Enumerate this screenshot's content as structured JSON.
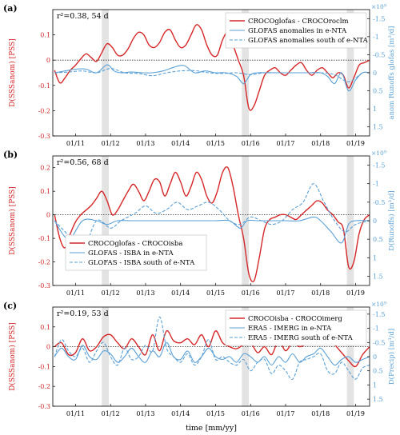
{
  "figure": {
    "xlabel": "time [mm/yy]",
    "shading": {
      "color": "#e3e3e3",
      "periods": [
        [
          11.75,
          11.95
        ],
        [
          15.75,
          15.95
        ],
        [
          18.75,
          18.95
        ]
      ]
    },
    "xlim": [
      10.35,
      19.4
    ],
    "x_ticks": [
      11,
      12,
      13,
      14,
      15,
      16,
      17,
      18,
      19
    ],
    "x_tick_labels": [
      "01/11",
      "01/12",
      "01/13",
      "01/14",
      "01/15",
      "01/16",
      "01/17",
      "01/18",
      "01/19"
    ],
    "colors": {
      "red": "#d62728",
      "blue": "#5aa0d6",
      "grid": "#9e9e9e"
    }
  },
  "chart_data": [
    {
      "type": "line",
      "panel_label": "(a)",
      "stat_label": "r²=0.38, 54 d",
      "ylabel_left": "D(SSSanom) [PSS]",
      "ylabel_right": "anom Runoffs glofas [m³/d]",
      "right_multiplier": "×10⁹",
      "ylim_left": [
        -0.3,
        0.2
      ],
      "left_ticks": [
        0.1,
        0,
        -0.1,
        -0.2,
        -0.3
      ],
      "left_tick_labels": [
        "0.1",
        "0",
        "-0.1",
        "-0.2",
        "-0.3"
      ],
      "ylim_right": [
        1.75,
        -1.75
      ],
      "right_ticks": [
        -1.5,
        -1,
        -0.5,
        0,
        0.5,
        1,
        1.5
      ],
      "right_tick_labels": [
        "-1.5",
        "-1",
        "-0.5",
        "0",
        "0.5",
        "1",
        "1.5"
      ],
      "legend_position": "top-right",
      "series": [
        {
          "name": "CROCOglofas - CROCOroclm",
          "axis": "left",
          "color": "#d62728",
          "dash": "solid",
          "x": [
            10.4,
            10.55,
            10.7,
            10.85,
            11.0,
            11.15,
            11.3,
            11.45,
            11.6,
            11.75,
            11.9,
            12.05,
            12.2,
            12.35,
            12.5,
            12.65,
            12.8,
            12.95,
            13.1,
            13.25,
            13.4,
            13.55,
            13.7,
            13.85,
            14.0,
            14.15,
            14.3,
            14.45,
            14.6,
            14.75,
            14.9,
            15.05,
            15.2,
            15.35,
            15.5,
            15.65,
            15.8,
            15.95,
            16.1,
            16.25,
            16.4,
            16.55,
            16.7,
            16.85,
            17.0,
            17.15,
            17.3,
            17.45,
            17.6,
            17.75,
            17.9,
            18.05,
            18.2,
            18.35,
            18.5,
            18.65,
            18.8,
            18.95,
            19.1,
            19.25,
            19.4
          ],
          "y": [
            -0.04,
            -0.09,
            -0.07,
            -0.04,
            -0.02,
            0.005,
            0.025,
            0.01,
            -0.005,
            0.03,
            0.065,
            0.05,
            0.02,
            0.02,
            0.045,
            0.085,
            0.11,
            0.1,
            0.06,
            0.05,
            0.07,
            0.11,
            0.12,
            0.08,
            0.05,
            0.06,
            0.1,
            0.14,
            0.12,
            0.06,
            0.02,
            0.02,
            0.08,
            0.11,
            0.06,
            0.0,
            -0.06,
            -0.19,
            -0.18,
            -0.12,
            -0.06,
            -0.04,
            -0.03,
            -0.05,
            -0.06,
            -0.04,
            -0.02,
            -0.01,
            -0.04,
            -0.06,
            -0.04,
            -0.03,
            -0.05,
            -0.07,
            -0.05,
            -0.06,
            -0.11,
            -0.07,
            -0.02,
            -0.01,
            0.0
          ]
        },
        {
          "name": "GLOFAS anomalies in e-NTA",
          "axis": "right",
          "color": "#5aa0d6",
          "dash": "solid",
          "x": [
            10.4,
            10.7,
            11.0,
            11.3,
            11.6,
            11.9,
            12.1,
            12.3,
            12.6,
            12.9,
            13.2,
            13.5,
            13.8,
            14.1,
            14.4,
            14.7,
            15.0,
            15.3,
            15.6,
            15.8,
            16.0,
            16.2,
            16.5,
            16.8,
            17.1,
            17.4,
            17.7,
            18.0,
            18.2,
            18.4,
            18.6,
            18.8,
            19.0,
            19.2,
            19.4
          ],
          "y": [
            0.0,
            -0.05,
            -0.1,
            -0.1,
            0.0,
            -0.22,
            -0.05,
            0.0,
            -0.02,
            0.0,
            0.0,
            -0.05,
            -0.15,
            -0.2,
            0.0,
            -0.05,
            0.0,
            0.0,
            0.1,
            0.3,
            0.05,
            0.0,
            0.0,
            0.0,
            0.0,
            0.0,
            0.0,
            0.0,
            0.1,
            0.3,
            0.0,
            0.5,
            0.2,
            0.0,
            0.0
          ]
        },
        {
          "name": "GLOFAS anomalies south of e-NTA",
          "axis": "right",
          "color": "#5aa0d6",
          "dash": "dashed",
          "x": [
            10.4,
            10.8,
            11.2,
            11.6,
            12.0,
            12.4,
            12.8,
            13.2,
            13.6,
            14.0,
            14.4,
            14.8,
            15.2,
            15.6,
            16.0,
            16.4,
            16.8,
            17.2,
            17.6,
            18.0,
            18.4,
            18.8,
            19.2,
            19.4
          ],
          "y": [
            0.0,
            -0.02,
            -0.05,
            0.0,
            -0.12,
            0.0,
            0.02,
            0.08,
            0.0,
            -0.05,
            -0.06,
            0.0,
            0.02,
            0.0,
            0.05,
            0.0,
            0.0,
            0.0,
            0.0,
            0.0,
            0.05,
            0.25,
            0.0,
            0.0
          ]
        }
      ]
    },
    {
      "type": "line",
      "panel_label": "(b)",
      "stat_label": "r²=0.56, 68 d",
      "ylabel_left": "D(SSSanom) [PSS]",
      "ylabel_right": "D(Runoffs) [m³/d]",
      "right_multiplier": "×10⁹",
      "ylim_left": [
        -0.3,
        0.25
      ],
      "left_ticks": [
        0.2,
        0.1,
        0,
        -0.1,
        -0.2,
        -0.3
      ],
      "left_tick_labels": [
        "0.2",
        "0.1",
        "0",
        "-0.1",
        "-0.2",
        "-0.3"
      ],
      "ylim_right": [
        1.75,
        -1.75
      ],
      "right_ticks": [
        -1.5,
        -1,
        -0.5,
        0,
        0.5,
        1,
        1.5
      ],
      "right_tick_labels": [
        "-1.5",
        "-1",
        "-0.5",
        "0",
        "0.5",
        "1",
        "1.5"
      ],
      "legend_position": "bottom-left",
      "series": [
        {
          "name": "CROCOglofas - CROCOisba",
          "axis": "left",
          "color": "#d62728",
          "dash": "solid",
          "x": [
            10.4,
            10.55,
            10.7,
            10.85,
            11.0,
            11.15,
            11.3,
            11.45,
            11.6,
            11.75,
            11.9,
            12.05,
            12.2,
            12.35,
            12.5,
            12.65,
            12.8,
            12.95,
            13.1,
            13.25,
            13.4,
            13.55,
            13.7,
            13.85,
            14.0,
            14.15,
            14.3,
            14.45,
            14.6,
            14.75,
            14.9,
            15.05,
            15.2,
            15.35,
            15.5,
            15.65,
            15.8,
            15.95,
            16.1,
            16.25,
            16.4,
            16.55,
            16.7,
            16.85,
            17.0,
            17.15,
            17.3,
            17.45,
            17.6,
            17.75,
            17.9,
            18.05,
            18.2,
            18.35,
            18.5,
            18.65,
            18.8,
            18.95,
            19.1,
            19.25,
            19.4
          ],
          "y": [
            0.0,
            -0.1,
            -0.14,
            -0.08,
            -0.03,
            0.0,
            0.02,
            0.04,
            0.07,
            0.1,
            0.06,
            0.0,
            0.02,
            0.06,
            0.1,
            0.13,
            0.1,
            0.06,
            0.1,
            0.15,
            0.14,
            0.08,
            0.13,
            0.18,
            0.14,
            0.08,
            0.12,
            0.18,
            0.15,
            0.08,
            0.05,
            0.1,
            0.18,
            0.2,
            0.12,
            0.0,
            -0.1,
            -0.25,
            -0.28,
            -0.18,
            -0.06,
            -0.02,
            -0.01,
            0.0,
            0.0,
            -0.01,
            -0.02,
            0.0,
            0.02,
            0.04,
            0.06,
            0.05,
            0.02,
            0.0,
            -0.03,
            -0.06,
            -0.22,
            -0.2,
            -0.08,
            -0.02,
            0.0
          ]
        },
        {
          "name": "GLOFAS - ISBA in e-NTA",
          "axis": "right",
          "color": "#5aa0d6",
          "dash": "solid",
          "x": [
            10.4,
            10.8,
            11.2,
            11.6,
            11.9,
            12.2,
            12.6,
            13.0,
            13.4,
            13.8,
            14.2,
            14.6,
            15.0,
            15.4,
            15.7,
            15.9,
            16.2,
            16.6,
            17.0,
            17.4,
            17.8,
            18.0,
            18.3,
            18.6,
            18.8,
            19.0,
            19.4
          ],
          "y": [
            0.0,
            0.5,
            0.0,
            0.0,
            0.1,
            0.0,
            0.0,
            0.0,
            0.0,
            0.0,
            0.0,
            0.0,
            0.0,
            0.0,
            0.2,
            0.0,
            0.0,
            0.0,
            0.0,
            0.0,
            -0.1,
            0.0,
            0.3,
            0.6,
            0.1,
            0.0,
            0.0
          ]
        },
        {
          "name": "GLOFAS - ISBA south of e-NTA",
          "axis": "right",
          "color": "#5aa0d6",
          "dash": "dashed",
          "x": [
            10.4,
            10.8,
            11.2,
            11.6,
            12.0,
            12.3,
            12.7,
            13.0,
            13.3,
            13.6,
            13.9,
            14.2,
            14.5,
            14.8,
            15.1,
            15.4,
            15.7,
            16.0,
            16.3,
            16.6,
            16.9,
            17.2,
            17.5,
            17.8,
            18.1,
            18.4,
            18.7,
            19.0,
            19.4
          ],
          "y": [
            0.0,
            0.4,
            0.8,
            0.0,
            0.2,
            0.0,
            -0.2,
            -0.4,
            -0.2,
            -0.3,
            -0.5,
            -0.3,
            -0.4,
            -0.5,
            -0.3,
            0.0,
            0.1,
            -0.1,
            0.0,
            0.1,
            0.0,
            -0.3,
            -0.5,
            -1.0,
            -0.5,
            0.0,
            0.3,
            0.1,
            0.0
          ]
        }
      ]
    },
    {
      "type": "line",
      "panel_label": "(c)",
      "stat_label": "r²=0.19, 53 d",
      "ylabel_left": "D(SSSanom) [PSS]",
      "ylabel_right": "D(Precip) [m³/d]",
      "right_multiplier": "×10⁹",
      "ylim_left": [
        -0.3,
        0.2
      ],
      "left_ticks": [
        0.1,
        0,
        -0.1,
        -0.2,
        -0.3
      ],
      "left_tick_labels": [
        "0.1",
        "0",
        "-0.1",
        "-0.2",
        "-0.3"
      ],
      "ylim_right": [
        1.75,
        -1.75
      ],
      "right_ticks": [
        -1.5,
        -1,
        -0.5,
        0,
        0.5,
        1,
        1.5
      ],
      "right_tick_labels": [
        "-1.5",
        "-1",
        "-0.5",
        "0",
        "0.5",
        "1",
        "1.5"
      ],
      "legend_position": "top-right",
      "series": [
        {
          "name": "CROCOisba - CROCOimerg",
          "axis": "left",
          "color": "#d62728",
          "dash": "solid",
          "x": [
            10.4,
            10.6,
            10.8,
            11.0,
            11.2,
            11.4,
            11.6,
            11.8,
            12.0,
            12.2,
            12.4,
            12.6,
            12.8,
            13.0,
            13.2,
            13.4,
            13.6,
            13.8,
            14.0,
            14.2,
            14.4,
            14.6,
            14.8,
            15.0,
            15.2,
            15.4,
            15.6,
            15.8,
            16.0,
            16.2,
            16.4,
            16.6,
            16.8,
            17.0,
            17.2,
            17.4,
            17.6,
            17.8,
            18.0,
            18.2,
            18.4,
            18.6,
            18.8,
            19.0,
            19.2,
            19.4
          ],
          "y": [
            0.0,
            0.02,
            -0.04,
            -0.03,
            0.04,
            -0.02,
            0.0,
            0.05,
            0.06,
            0.02,
            -0.01,
            0.04,
            0.0,
            -0.04,
            0.06,
            -0.02,
            0.08,
            0.03,
            0.02,
            0.04,
            0.01,
            0.06,
            0.0,
            0.08,
            0.02,
            0.0,
            -0.01,
            0.01,
            0.02,
            -0.03,
            0.0,
            -0.04,
            0.03,
            -0.02,
            0.02,
            0.0,
            0.02,
            0.08,
            0.12,
            0.04,
            0.01,
            -0.03,
            -0.07,
            -0.1,
            -0.04,
            0.0
          ]
        },
        {
          "name": "ERA5 - IMERG in e-NTA",
          "axis": "right",
          "color": "#5aa0d6",
          "dash": "solid",
          "x": [
            10.4,
            10.6,
            10.8,
            11.0,
            11.2,
            11.4,
            11.6,
            11.8,
            12.0,
            12.2,
            12.4,
            12.6,
            12.8,
            13.0,
            13.2,
            13.4,
            13.6,
            13.8,
            14.0,
            14.2,
            14.4,
            14.6,
            14.8,
            15.0,
            15.2,
            15.4,
            15.6,
            15.8,
            16.0,
            16.2,
            16.4,
            16.6,
            16.8,
            17.0,
            17.2,
            17.4,
            17.6,
            17.8,
            18.0,
            18.2,
            18.4,
            18.6,
            18.8,
            19.0,
            19.2,
            19.4
          ],
          "y": [
            0.0,
            -0.3,
            0.0,
            0.1,
            -0.4,
            0.0,
            0.1,
            -0.2,
            -0.1,
            0.2,
            0.0,
            -0.3,
            0.0,
            0.2,
            -0.2,
            0.0,
            -0.5,
            0.0,
            0.1,
            -0.2,
            0.2,
            0.0,
            -0.3,
            0.0,
            0.1,
            0.0,
            0.2,
            -0.1,
            0.0,
            0.2,
            0.0,
            0.3,
            0.0,
            0.2,
            -0.1,
            0.2,
            0.0,
            -0.1,
            -0.3,
            0.0,
            0.3,
            0.1,
            0.0,
            0.2,
            0.1,
            0.0
          ]
        },
        {
          "name": "ERA5 - IMERG south of e-NTA",
          "axis": "right",
          "color": "#5aa0d6",
          "dash": "dashed",
          "x": [
            10.4,
            10.6,
            10.8,
            11.0,
            11.2,
            11.4,
            11.6,
            11.8,
            12.0,
            12.2,
            12.4,
            12.6,
            12.8,
            13.0,
            13.2,
            13.4,
            13.6,
            13.8,
            14.0,
            14.2,
            14.4,
            14.6,
            14.8,
            15.0,
            15.2,
            15.4,
            15.6,
            15.8,
            16.0,
            16.2,
            16.4,
            16.6,
            16.8,
            17.0,
            17.2,
            17.4,
            17.6,
            17.8,
            18.0,
            18.2,
            18.4,
            18.6,
            18.8,
            19.0,
            19.2,
            19.4
          ],
          "y": [
            0.0,
            -0.6,
            -0.2,
            0.0,
            -0.3,
            0.2,
            -0.2,
            -0.5,
            0.0,
            0.3,
            -0.3,
            0.1,
            0.0,
            -0.4,
            -0.2,
            -1.4,
            -0.3,
            0.0,
            0.2,
            -0.1,
            0.3,
            0.0,
            -0.6,
            0.1,
            0.0,
            0.2,
            0.3,
            0.1,
            0.5,
            0.2,
            0.1,
            0.6,
            0.3,
            0.5,
            0.8,
            0.2,
            0.1,
            0.0,
            -0.1,
            0.5,
            0.6,
            0.2,
            0.5,
            0.8,
            0.4,
            0.3
          ]
        }
      ]
    }
  ]
}
